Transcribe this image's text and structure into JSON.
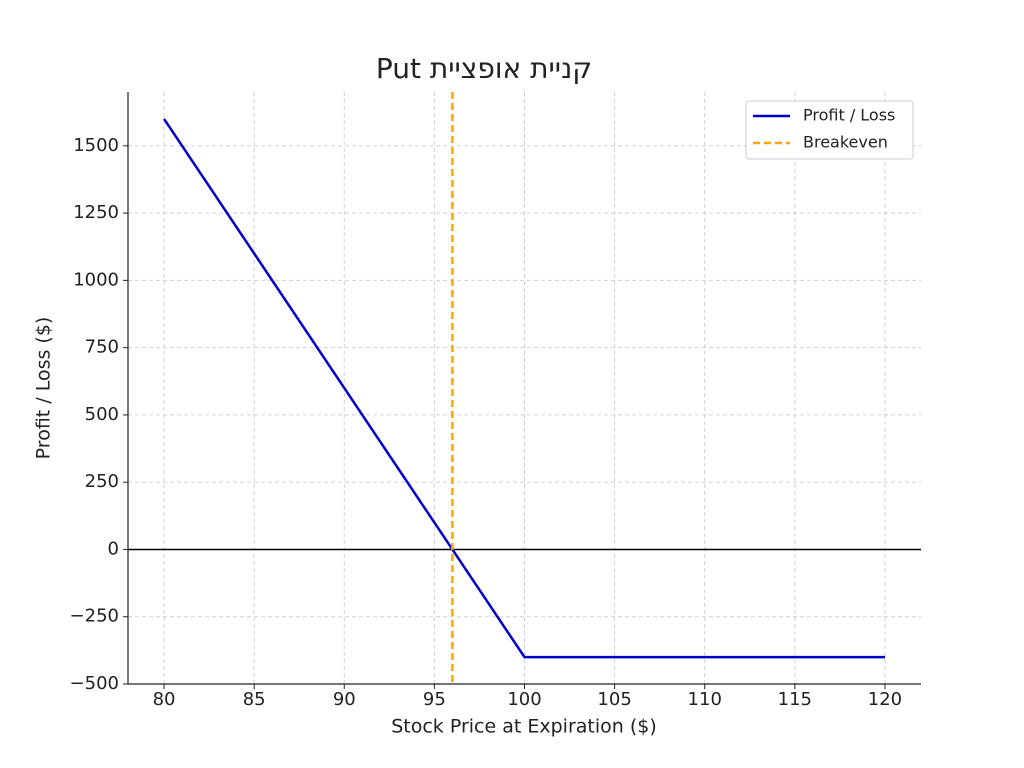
{
  "chart_data": {
    "type": "line",
    "title": "קניית אופציית Put",
    "xlabel": "Stock Price at Expiration ($)",
    "ylabel": "Profit / Loss ($)",
    "x": [
      80,
      100,
      120
    ],
    "series": [
      {
        "name": "Profit / Loss",
        "color": "#0000cc",
        "values": [
          1600,
          -400,
          -400
        ]
      }
    ],
    "breakeven": {
      "name": "Breakeven",
      "x": 96,
      "color": "#ffa500"
    },
    "zero_line": {
      "value": 0,
      "color": "#000000"
    },
    "xlim": [
      78,
      122
    ],
    "xticks": [
      80,
      85,
      90,
      95,
      100,
      105,
      110,
      115,
      120
    ],
    "ylim": [
      -500,
      1700
    ],
    "yticks": [
      {
        "value": -500,
        "label": "−500"
      },
      {
        "value": -250,
        "label": "−250"
      },
      0,
      250,
      500,
      750,
      1000,
      1250,
      1500
    ],
    "grid": true,
    "legend": "upper right"
  }
}
